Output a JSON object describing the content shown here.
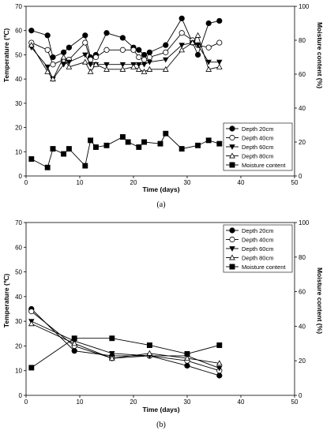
{
  "chart_data": [
    {
      "type": "line",
      "panel_label": "(a)",
      "xlabel": "Time (days)",
      "ylabel": "Temperature (℃)",
      "y2label": "Moisture content (%)",
      "xlim": [
        0,
        50
      ],
      "ylim": [
        0,
        70
      ],
      "y2lim": [
        0,
        100
      ],
      "xticks": [
        0,
        10,
        20,
        30,
        40,
        50
      ],
      "yticks": [
        0,
        10,
        20,
        30,
        40,
        50,
        60,
        70
      ],
      "y2ticks": [
        0,
        20,
        40,
        60,
        80,
        100
      ],
      "legend_position": "bottom-right",
      "series": [
        {
          "name": "Depth 20cm",
          "axis": "left",
          "marker": "filled-circle",
          "x": [
            1,
            4,
            5,
            7,
            8,
            11,
            12,
            13,
            15,
            18,
            20,
            21,
            22,
            23,
            26,
            29,
            31,
            32,
            34,
            36
          ],
          "y": [
            60,
            58,
            49,
            51,
            53,
            58,
            49,
            50,
            59,
            57,
            53,
            52,
            50,
            51,
            54,
            65,
            55,
            50,
            63,
            64
          ]
        },
        {
          "name": "Depth 40cm",
          "axis": "left",
          "marker": "open-circle",
          "x": [
            1,
            4,
            5,
            7,
            8,
            11,
            12,
            13,
            15,
            18,
            20,
            21,
            22,
            23,
            26,
            29,
            31,
            32,
            34,
            36
          ],
          "y": [
            55,
            52,
            46,
            48,
            48,
            55,
            48,
            49,
            52,
            52,
            52,
            49,
            48,
            49,
            51,
            59,
            56,
            54,
            53,
            55
          ]
        },
        {
          "name": "Depth 60cm",
          "axis": "left",
          "marker": "filled-triangle-down",
          "x": [
            1,
            4,
            5,
            7,
            8,
            11,
            12,
            13,
            15,
            18,
            20,
            21,
            22,
            23,
            26,
            29,
            31,
            32,
            34,
            36
          ],
          "y": [
            53,
            45,
            40,
            46,
            47,
            50,
            46,
            46,
            46,
            46,
            46,
            46,
            46,
            47,
            48,
            54,
            55,
            54,
            47,
            47
          ]
        },
        {
          "name": "Depth 80cm",
          "axis": "left",
          "marker": "open-triangle-up",
          "x": [
            1,
            4,
            5,
            7,
            8,
            11,
            12,
            13,
            15,
            18,
            20,
            21,
            22,
            23,
            26,
            29,
            31,
            32,
            34,
            36
          ],
          "y": [
            54,
            43,
            40,
            49,
            45,
            47,
            43,
            46,
            44,
            44,
            45,
            44,
            43,
            44,
            44,
            52,
            55,
            58,
            44,
            45
          ]
        },
        {
          "name": "Moisture content",
          "axis": "right",
          "marker": "filled-square",
          "x": [
            1,
            4,
            5,
            7,
            8,
            11,
            12,
            13,
            15,
            18,
            19,
            21,
            22,
            25,
            26,
            29,
            32,
            34,
            36
          ],
          "y": [
            10,
            5,
            16,
            13,
            16,
            6,
            21,
            17,
            18,
            23,
            20,
            17,
            20,
            19,
            25,
            16,
            18,
            21,
            19
          ]
        }
      ]
    },
    {
      "type": "line",
      "panel_label": "(b)",
      "xlabel": "Time (days)",
      "ylabel": "Temperature (℃)",
      "y2label": "Moisture content (%)",
      "xlim": [
        0,
        50
      ],
      "ylim": [
        0,
        70
      ],
      "y2lim": [
        0,
        100
      ],
      "xticks": [
        0,
        10,
        20,
        30,
        40,
        50
      ],
      "yticks": [
        0,
        10,
        20,
        30,
        40,
        50,
        60,
        70
      ],
      "y2ticks": [
        0,
        20,
        40,
        60,
        80,
        100
      ],
      "legend_position": "top-right",
      "series": [
        {
          "name": "Depth 20cm",
          "axis": "left",
          "marker": "filled-circle",
          "x": [
            1,
            9,
            16,
            23,
            30,
            36
          ],
          "y": [
            35,
            18,
            16,
            16,
            12,
            8
          ]
        },
        {
          "name": "Depth 40cm",
          "axis": "left",
          "marker": "open-circle",
          "x": [
            1,
            9,
            16,
            23,
            30,
            36
          ],
          "y": [
            34,
            20,
            15,
            16,
            14,
            10
          ]
        },
        {
          "name": "Depth 60cm",
          "axis": "left",
          "marker": "filled-triangle-down",
          "x": [
            1,
            9,
            16,
            23,
            30,
            36
          ],
          "y": [
            30,
            22,
            17,
            16,
            16,
            11
          ]
        },
        {
          "name": "Depth 80cm",
          "axis": "left",
          "marker": "open-triangle-up",
          "x": [
            1,
            9,
            16,
            23,
            30,
            36
          ],
          "y": [
            29,
            21,
            15,
            17,
            15,
            13
          ]
        },
        {
          "name": "Moisture content",
          "axis": "right",
          "marker": "filled-square",
          "x": [
            1,
            9,
            16,
            23,
            30,
            36
          ],
          "y": [
            16,
            33,
            33,
            29,
            24,
            29
          ]
        }
      ]
    }
  ]
}
